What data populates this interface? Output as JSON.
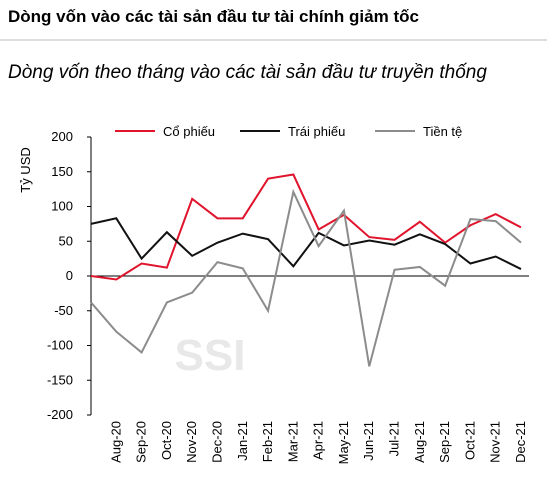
{
  "chart_data": {
    "type": "line",
    "title": "Dòng vốn vào các tài sản đầu tư tài chính giảm tốc",
    "subtitle": "Dòng vốn theo tháng vào các tài sản đầu tư truyền thống",
    "y_label": "Tỷ USD",
    "watermark": "SSI",
    "categories": [
      null,
      "Aug-20",
      "Sep-20",
      "Oct-20",
      "Nov-20",
      "Dec-20",
      "Jan-21",
      "Feb-21",
      "Mar-21",
      "Apr-21",
      "May-21",
      "Jun-21",
      "Jul-21",
      "Aug-21",
      "Sep-21",
      "Oct-21",
      "Nov-21",
      "Dec-21"
    ],
    "series": [
      {
        "name": "Cổ phiếu",
        "color": "#e0142c",
        "values": [
          0,
          -5,
          18,
          12,
          111,
          83,
          83,
          140,
          146,
          67,
          88,
          56,
          52,
          78,
          48,
          73,
          89,
          70
        ]
      },
      {
        "name": "Trái phiếu",
        "color": "#111111",
        "values": [
          75,
          83,
          25,
          63,
          29,
          48,
          61,
          53,
          14,
          62,
          44,
          51,
          45,
          60,
          46,
          18,
          28,
          10
        ]
      },
      {
        "name": "Tiền tệ",
        "color": "#8c8c8c",
        "values": [
          -38,
          -80,
          -110,
          -38,
          -24,
          20,
          11,
          -50,
          121,
          43,
          94,
          -130,
          9,
          13,
          -14,
          82,
          79,
          48
        ]
      }
    ],
    "ylim": [
      -200,
      200
    ],
    "yticks": [
      -200,
      -150,
      -100,
      -50,
      0,
      50,
      100,
      150,
      200
    ],
    "grid": false
  }
}
